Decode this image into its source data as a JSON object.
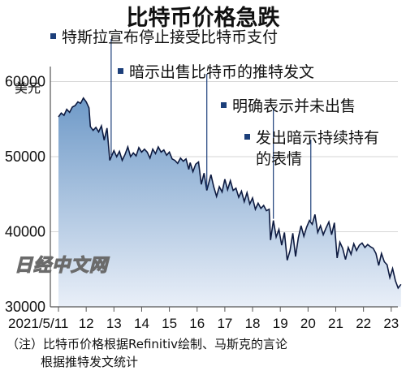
{
  "chart_data": {
    "type": "area",
    "title": "比特币价格急跌",
    "ylabel": "美元",
    "ylim": [
      30000,
      62000
    ],
    "yticks": [
      "60000",
      "50000",
      "40000",
      "30000"
    ],
    "ytick_values": [
      60000,
      50000,
      40000,
      30000
    ],
    "xticks": [
      "2021/5/11",
      "12",
      "13",
      "14",
      "15",
      "16",
      "17",
      "18",
      "19",
      "20",
      "21",
      "22",
      "23"
    ],
    "xtick_values": [
      0,
      1,
      2,
      3,
      4,
      5,
      6,
      7,
      8,
      9,
      10,
      11,
      12
    ],
    "x": [
      0,
      0.1,
      0.2,
      0.3,
      0.4,
      0.5,
      0.6,
      0.7,
      0.8,
      0.9,
      1.0,
      1.1,
      1.15,
      1.25,
      1.35,
      1.45,
      1.55,
      1.65,
      1.75,
      1.85,
      2.0,
      2.1,
      2.2,
      2.3,
      2.4,
      2.5,
      2.6,
      2.7,
      2.8,
      2.9,
      3.0,
      3.1,
      3.2,
      3.3,
      3.4,
      3.5,
      3.6,
      3.7,
      3.8,
      3.9,
      4.0,
      4.1,
      4.2,
      4.3,
      4.4,
      4.5,
      4.6,
      4.7,
      4.75,
      4.85,
      4.95,
      5.05,
      5.15,
      5.25,
      5.35,
      5.5,
      5.6,
      5.7,
      5.8,
      5.9,
      6.0,
      6.1,
      6.2,
      6.3,
      6.4,
      6.5,
      6.6,
      6.7,
      6.8,
      6.9,
      7.0,
      7.1,
      7.2,
      7.3,
      7.4,
      7.5,
      7.6,
      7.65,
      7.75,
      7.85,
      7.95,
      8.05,
      8.15,
      8.25,
      8.35,
      8.45,
      8.55,
      8.65,
      8.75,
      8.85,
      8.95,
      9.05,
      9.15,
      9.25,
      9.35,
      9.45,
      9.55,
      9.65,
      9.75,
      9.85,
      9.95,
      10.05,
      10.15,
      10.25,
      10.35,
      10.45,
      10.55,
      10.65,
      10.75,
      10.85,
      10.95,
      11.05,
      11.15,
      11.25,
      11.35,
      11.45,
      11.55,
      11.65,
      11.75,
      11.85,
      11.95,
      12.05,
      12.15,
      12.25,
      12.35
    ],
    "values": [
      55300,
      55800,
      55500,
      56300,
      55900,
      56600,
      56800,
      57300,
      57100,
      57800,
      57300,
      56500,
      54000,
      53500,
      53900,
      53300,
      54100,
      52200,
      53800,
      49500,
      50800,
      50000,
      50700,
      49500,
      50300,
      51300,
      50000,
      50500,
      50100,
      51200,
      50600,
      51000,
      50600,
      49800,
      51000,
      50400,
      51300,
      50600,
      50900,
      50200,
      50600,
      49700,
      49500,
      49100,
      49800,
      49400,
      49700,
      48300,
      49200,
      48000,
      49000,
      49300,
      46300,
      47800,
      45500,
      47600,
      46000,
      44700,
      46000,
      45300,
      47000,
      45600,
      46800,
      45500,
      45800,
      44600,
      45400,
      44000,
      45200,
      43700,
      44500,
      43000,
      43800,
      43100,
      43500,
      42800,
      43000,
      38900,
      41500,
      39300,
      40300,
      38200,
      39900,
      36200,
      37500,
      39800,
      36700,
      39200,
      40800,
      39400,
      40600,
      41500,
      41000,
      42300,
      39900,
      40800,
      39600,
      40500,
      41300,
      39600,
      41200,
      36500,
      38600,
      37800,
      36300,
      37900,
      37000,
      38400,
      37500,
      38200,
      38500,
      37900,
      38300,
      38000,
      37800,
      37100,
      35500,
      37100,
      36000,
      35600,
      33900,
      35100,
      33500,
      32500,
      33000
    ]
  },
  "annotations": [
    {
      "text": "特斯拉宣布停止接受比特币支付",
      "x": 1.9
    },
    {
      "text": "暗示出售比特币的推特发文",
      "x": 5.35
    },
    {
      "text": "明确表示并未出售",
      "x": 7.75
    },
    {
      "text": "发出暗示持续持有",
      "x": 9.1
    },
    {
      "text": "的表情",
      "x": 9.1
    }
  ],
  "notes": [
    "（注）比特币价格根据Refinitiv绘制、马斯克的言论",
    "根据推特发文统计"
  ],
  "watermark": "日经中文网",
  "colors": {
    "line": "#0d1a40",
    "fill_top": "#6f9ac8",
    "fill_bottom": "#e9eff8",
    "marker": "#1c3f7a"
  }
}
